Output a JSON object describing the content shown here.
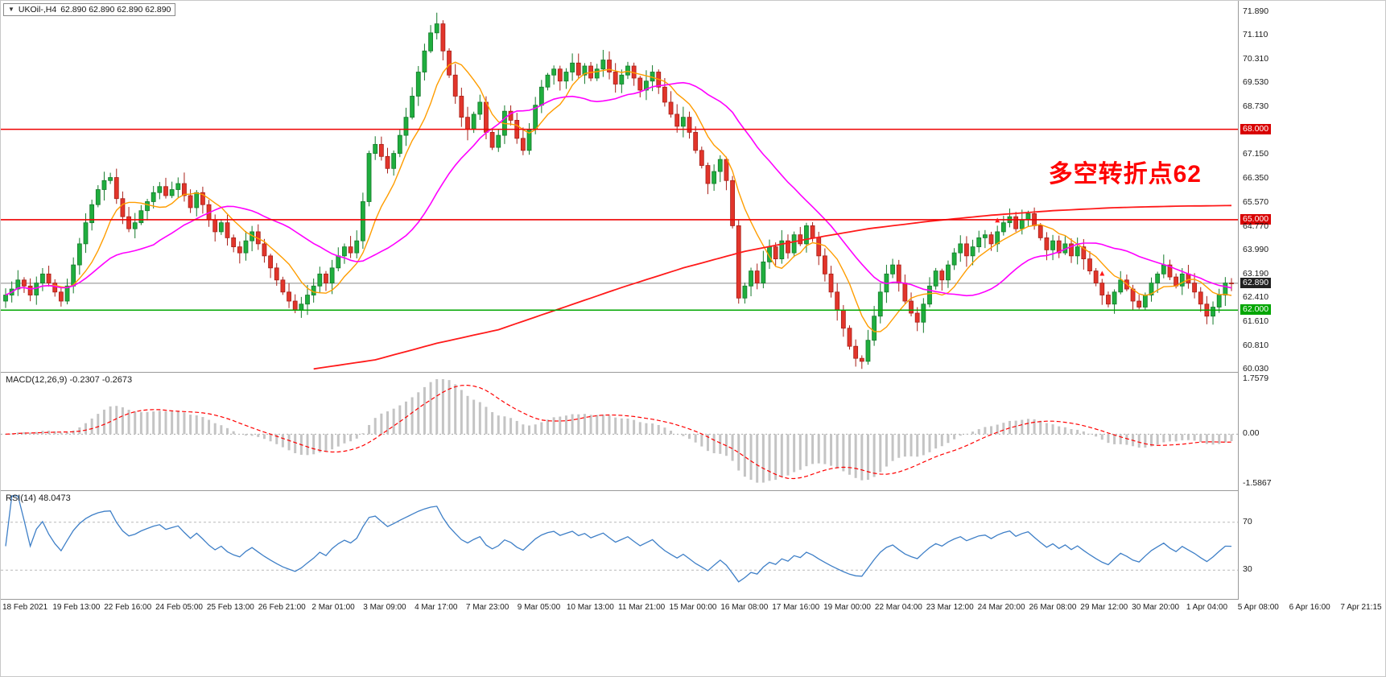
{
  "colors": {
    "up": "#1fae3e",
    "up_border": "#157a2b",
    "down": "#e2352b",
    "down_border": "#a81f18",
    "ma_fast": "#ff9d00",
    "ma_mid": "#ff00ff",
    "ma_slow": "#ff1a1a",
    "hline_red": "#ee0000",
    "hline_green": "#00a600",
    "macd_hist": "#c4c4c4",
    "macd_signal": "#ff0000",
    "rsi_line": "#3e7fc7",
    "annotation": "#ff0000",
    "grid": "#b9b9b9"
  },
  "symbol_bar": {
    "dropdown_icon": "▼",
    "symbol": "UKOil-,H4",
    "quotes": "62.890 62.890 62.890 62.890"
  },
  "annotation": {
    "text": "多空转折点62",
    "color": "#ff0000"
  },
  "chart_data": {
    "type": "candlestick",
    "symbol": "UKOil-",
    "timeframe": "H4",
    "price": {
      "ylim": [
        60.03,
        71.89
      ],
      "first_open": 62.3,
      "closes": [
        62.5,
        62.7,
        63.0,
        62.8,
        62.5,
        62.9,
        63.2,
        62.9,
        62.6,
        62.3,
        62.8,
        63.5,
        64.2,
        64.9,
        65.5,
        66.0,
        66.3,
        66.4,
        65.7,
        65.1,
        64.7,
        64.9,
        65.3,
        65.6,
        65.9,
        66.1,
        65.8,
        66.0,
        66.2,
        65.8,
        65.4,
        65.9,
        65.5,
        65.0,
        64.6,
        64.9,
        64.4,
        64.1,
        63.9,
        64.3,
        64.6,
        64.2,
        63.8,
        63.4,
        63.0,
        62.6,
        62.3,
        62.0,
        62.2,
        62.5,
        62.8,
        63.2,
        62.9,
        63.4,
        63.8,
        64.1,
        63.9,
        64.3,
        65.6,
        67.2,
        67.5,
        67.1,
        66.7,
        67.2,
        67.8,
        68.4,
        69.1,
        69.9,
        70.6,
        71.2,
        71.5,
        70.6,
        69.8,
        69.1,
        68.4,
        68.0,
        68.5,
        68.9,
        67.9,
        67.4,
        67.8,
        68.6,
        68.3,
        67.7,
        67.3,
        68.0,
        68.8,
        69.4,
        69.8,
        70.0,
        69.6,
        69.9,
        70.2,
        69.8,
        70.1,
        69.7,
        70.0,
        70.3,
        69.9,
        69.5,
        69.8,
        70.1,
        69.7,
        69.3,
        69.6,
        69.9,
        69.4,
        68.9,
        68.5,
        68.1,
        68.4,
        67.9,
        67.3,
        66.8,
        66.2,
        66.6,
        67.0,
        66.3,
        64.8,
        62.4,
        62.8,
        63.3,
        62.9,
        63.6,
        64.1,
        63.7,
        64.3,
        63.9,
        64.5,
        64.2,
        64.8,
        64.4,
        63.8,
        63.2,
        62.6,
        62.0,
        61.4,
        60.8,
        60.4,
        60.3,
        61.0,
        61.8,
        62.6,
        63.2,
        63.5,
        62.9,
        62.3,
        61.9,
        61.6,
        62.2,
        62.8,
        63.3,
        63.0,
        63.5,
        63.9,
        64.2,
        63.8,
        64.1,
        64.4,
        64.5,
        64.2,
        64.6,
        64.9,
        65.1,
        64.7,
        65.0,
        65.2,
        64.8,
        64.4,
        64.0,
        64.3,
        63.9,
        64.2,
        63.8,
        64.1,
        63.7,
        63.3,
        62.9,
        62.5,
        62.2,
        62.6,
        63.0,
        62.7,
        62.3,
        62.1,
        62.5,
        62.9,
        63.2,
        63.5,
        63.1,
        62.8,
        63.2,
        62.9,
        62.6,
        62.2,
        61.8,
        62.1,
        62.5,
        62.9,
        62.89
      ],
      "high_spike": {
        "index": 70,
        "price": 71.87
      },
      "low_spike": {
        "index": 139,
        "price": 60.05
      },
      "ma_fast_period": 8,
      "ma_mid_period": 25,
      "ma_slow_anchors": [
        [
          50,
          60.05
        ],
        [
          60,
          60.35
        ],
        [
          70,
          60.9
        ],
        [
          80,
          61.35
        ],
        [
          90,
          62.05
        ],
        [
          100,
          62.75
        ],
        [
          110,
          63.4
        ],
        [
          120,
          63.95
        ],
        [
          130,
          64.35
        ],
        [
          140,
          64.7
        ],
        [
          150,
          64.95
        ],
        [
          160,
          65.15
        ],
        [
          170,
          65.3
        ],
        [
          180,
          65.4
        ],
        [
          190,
          65.45
        ],
        [
          199,
          65.47
        ]
      ],
      "arrow_indices": [
        161,
        178
      ],
      "hlines": [
        {
          "price": 68.0,
          "color": "#ee0000",
          "label": "68.000",
          "style": "red"
        },
        {
          "price": 65.0,
          "color": "#ee0000",
          "label": "65.000",
          "style": "red"
        },
        {
          "price": 62.0,
          "color": "#00a600",
          "label": "62.000",
          "style": "green"
        }
      ],
      "current": {
        "price": 62.89,
        "label": "62.890"
      },
      "axis_ticks": [
        {
          "label": "71.890",
          "price": 71.89
        },
        {
          "label": "71.110",
          "price": 71.11
        },
        {
          "label": "70.310",
          "price": 70.31
        },
        {
          "label": "69.530",
          "price": 69.53
        },
        {
          "label": "68.730",
          "price": 68.73
        },
        {
          "label": "68.000",
          "price": 68.0,
          "style": "red"
        },
        {
          "label": "67.150",
          "price": 67.15
        },
        {
          "label": "66.350",
          "price": 66.35
        },
        {
          "label": "65.570",
          "price": 65.57
        },
        {
          "label": "65.000",
          "price": 65.0,
          "style": "red"
        },
        {
          "label": "64.770",
          "price": 64.77
        },
        {
          "label": "63.990",
          "price": 63.99
        },
        {
          "label": "63.190",
          "price": 63.19
        },
        {
          "label": "62.890",
          "price": 62.89,
          "style": "current"
        },
        {
          "label": "62.410",
          "price": 62.41
        },
        {
          "label": "62.000",
          "price": 62.0,
          "style": "green"
        },
        {
          "label": "61.610",
          "price": 61.61
        },
        {
          "label": "60.810",
          "price": 60.81
        },
        {
          "label": "60.030",
          "price": 60.03
        }
      ]
    },
    "macd": {
      "label_name": "MACD(12,26,9)",
      "label_values": "-0.2307 -0.2673",
      "fast": 12,
      "slow": 26,
      "signal": 9,
      "ylim": [
        -1.5867,
        1.7579
      ],
      "axis_labels": [
        "1.7579",
        "0.00",
        "-1.5867"
      ]
    },
    "rsi": {
      "label_name": "RSI(14)",
      "label_value": "48.0473",
      "period": 14,
      "levels": [
        70,
        30
      ],
      "display_range": [
        10,
        92
      ]
    },
    "time_labels": [
      "18 Feb 2021",
      "19 Feb 13:00",
      "22 Feb 16:00",
      "24 Feb 05:00",
      "25 Feb 13:00",
      "26 Feb 21:00",
      "2 Mar 01:00",
      "3 Mar 09:00",
      "4 Mar 17:00",
      "7 Mar 23:00",
      "9 Mar 05:00",
      "10 Mar 13:00",
      "11 Mar 21:00",
      "15 Mar 00:00",
      "16 Mar 08:00",
      "17 Mar 16:00",
      "19 Mar 00:00",
      "22 Mar 04:00",
      "23 Mar 12:00",
      "24 Mar 20:00",
      "26 Mar 08:00",
      "29 Mar 12:00",
      "30 Mar 20:00",
      "1 Apr 04:00",
      "5 Apr 08:00",
      "6 Apr 16:00",
      "7 Apr 21:15"
    ]
  }
}
